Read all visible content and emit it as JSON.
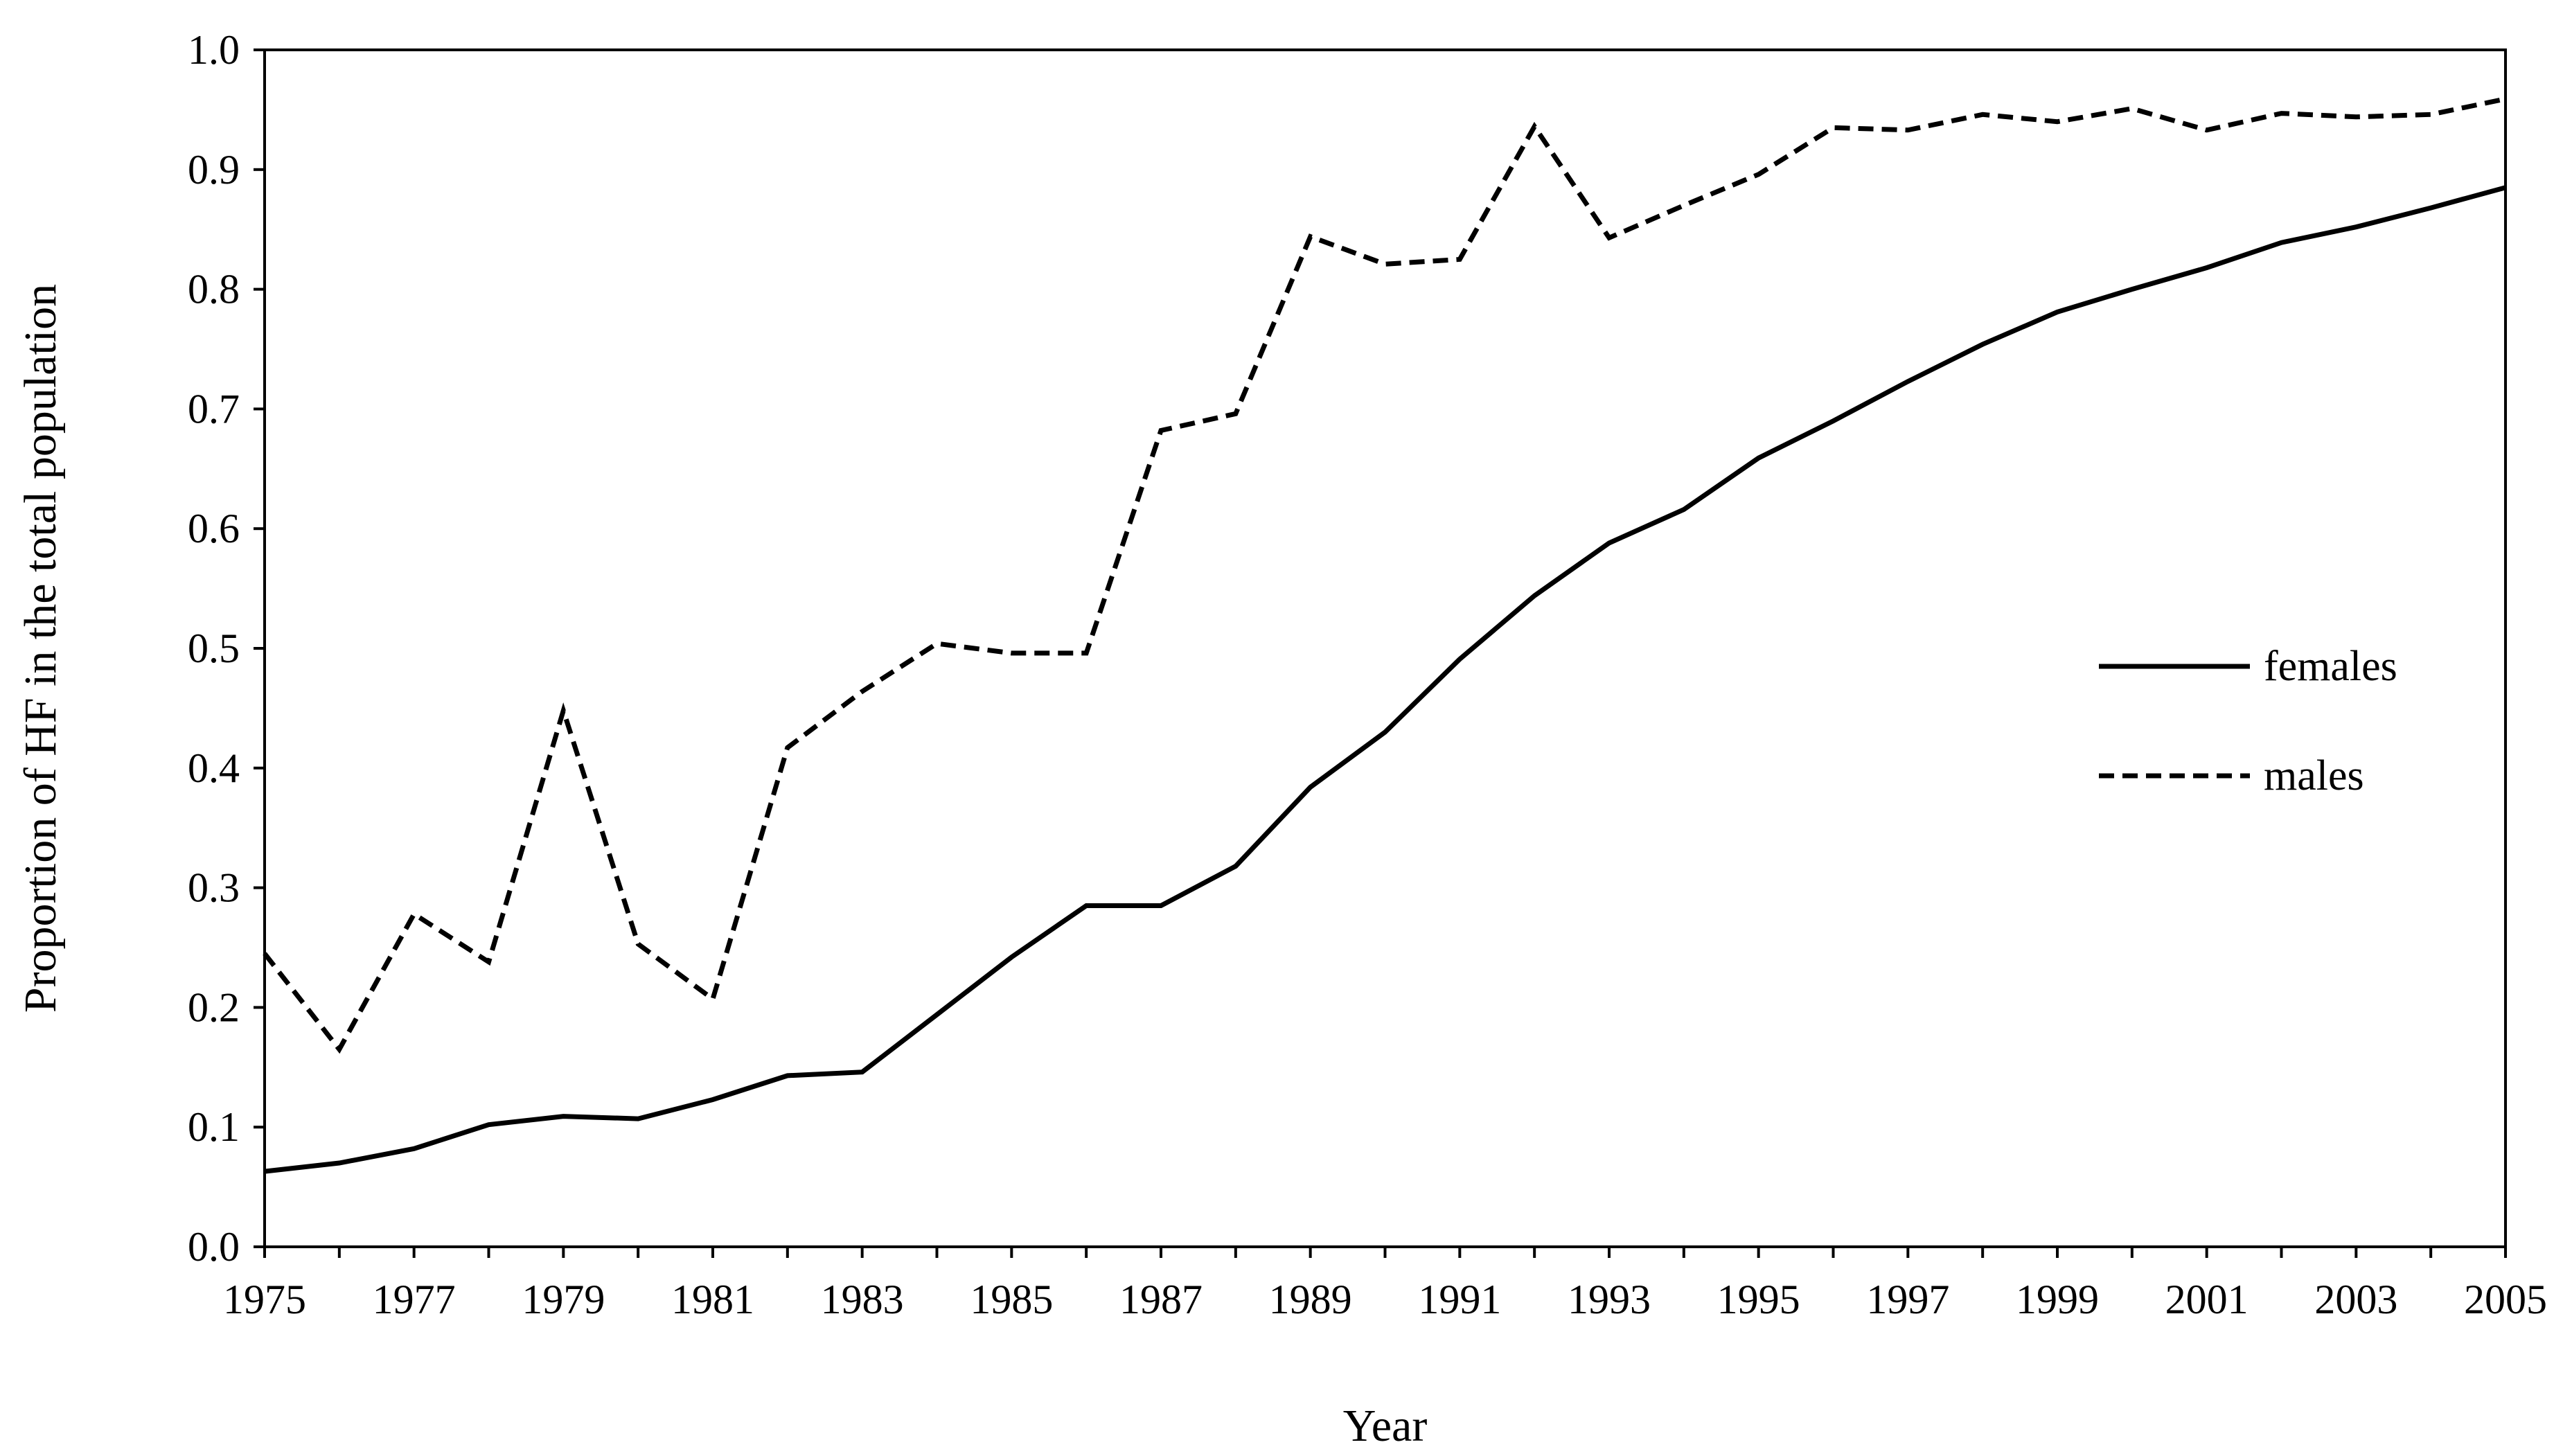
{
  "chart_data": {
    "type": "line",
    "xlabel": "Year",
    "ylabel": "Proportion of  HF in the total population",
    "xlim": [
      1975,
      2005
    ],
    "ylim": [
      0.0,
      1.0
    ],
    "x_tick_labels": [
      "1975",
      "1977",
      "1979",
      "1981",
      "1983",
      "1985",
      "1987",
      "1989",
      "1991",
      "1993",
      "1995",
      "1997",
      "1999",
      "2001",
      "2003",
      "2005"
    ],
    "y_tick_labels": [
      "0.0",
      "0.1",
      "0.2",
      "0.3",
      "0.4",
      "0.5",
      "0.6",
      "0.7",
      "0.8",
      "0.9",
      "1.0"
    ],
    "legend_position": "right-center",
    "grid": false,
    "x": [
      1975,
      1976,
      1977,
      1978,
      1979,
      1980,
      1981,
      1982,
      1983,
      1984,
      1985,
      1986,
      1987,
      1988,
      1989,
      1990,
      1991,
      1992,
      1993,
      1994,
      1995,
      1996,
      1997,
      1998,
      1999,
      2000,
      2001,
      2002,
      2003,
      2004,
      2005
    ],
    "series": [
      {
        "name": "females",
        "style": "solid",
        "color": "#000000",
        "values": [
          0.063,
          0.07,
          0.082,
          0.102,
          0.109,
          0.107,
          0.123,
          0.143,
          0.146,
          0.194,
          0.242,
          0.285,
          0.285,
          0.318,
          0.384,
          0.43,
          0.491,
          0.544,
          0.588,
          0.616,
          0.659,
          0.69,
          0.723,
          0.754,
          0.781,
          0.8,
          0.818,
          0.839,
          0.852,
          0.868,
          0.885
        ]
      },
      {
        "name": "males",
        "style": "dashed",
        "color": "#000000",
        "values": [
          0.245,
          0.165,
          0.278,
          0.238,
          0.448,
          0.253,
          0.207,
          0.417,
          0.464,
          0.504,
          0.496,
          0.496,
          0.682,
          0.696,
          0.844,
          0.821,
          0.825,
          0.936,
          0.843,
          0.87,
          0.896,
          0.935,
          0.933,
          0.946,
          0.94,
          0.951,
          0.933,
          0.947,
          0.944,
          0.946,
          0.959
        ]
      }
    ]
  }
}
